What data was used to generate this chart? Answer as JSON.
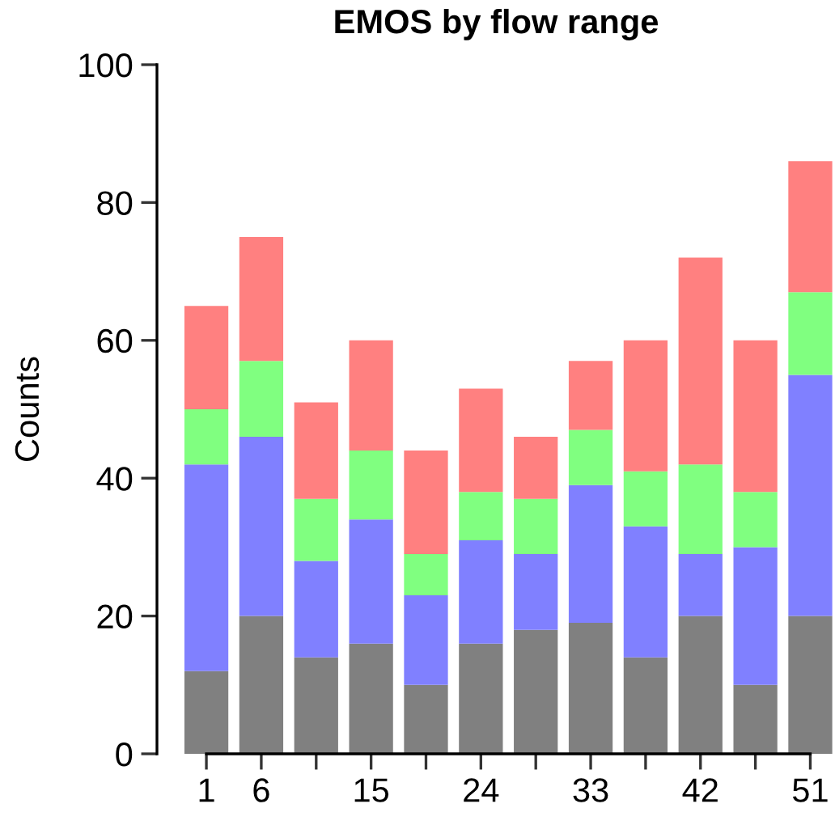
{
  "chart_data": {
    "type": "bar",
    "title": "EMOS by flow range",
    "ylabel": "Counts",
    "stacked": true,
    "categories": [
      "1",
      "6",
      null,
      "15",
      null,
      "24",
      null,
      "33",
      null,
      "42",
      null,
      "51"
    ],
    "series": [
      {
        "color": "#808080",
        "values": [
          12,
          20,
          14,
          16,
          10,
          16,
          18,
          19,
          14,
          20,
          10,
          20
        ]
      },
      {
        "color": "#8080ff",
        "values": [
          30,
          26,
          14,
          18,
          13,
          15,
          11,
          20,
          19,
          9,
          20,
          35
        ]
      },
      {
        "color": "#80ff80",
        "values": [
          8,
          11,
          9,
          10,
          6,
          7,
          8,
          8,
          8,
          13,
          8,
          12
        ]
      },
      {
        "color": "#ff8080",
        "values": [
          15,
          18,
          14,
          16,
          15,
          15,
          9,
          10,
          19,
          30,
          22,
          19
        ]
      }
    ],
    "ylim": [
      0,
      100
    ],
    "yticks": [
      0,
      20,
      40,
      60,
      80,
      100
    ],
    "grid": false,
    "legend": false
  }
}
